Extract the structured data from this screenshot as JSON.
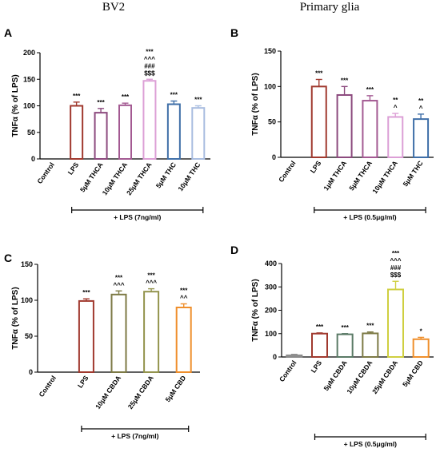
{
  "headers": {
    "left": "BV2",
    "right": "Primary glia"
  },
  "chart_data": [
    {
      "panel": "A",
      "type": "bar",
      "ylabel": "TNFα (% of LPS)",
      "ylim": [
        0,
        200
      ],
      "yticks": [
        0,
        50,
        100,
        150,
        200
      ],
      "categories": [
        "Control",
        "LPS",
        "5μM THCA",
        "10μM THCA",
        "25μM THCA",
        "5μM THC",
        "10μM THC"
      ],
      "values": [
        0,
        100,
        87,
        101,
        147,
        103,
        96
      ],
      "errors": [
        0,
        7,
        8,
        4,
        3,
        6,
        4
      ],
      "colors": [
        "#000000",
        "#a0392e",
        "#8c4a7e",
        "#a35a92",
        "#dc9fd6",
        "#3f6fa8",
        "#a9bde0"
      ],
      "annotations": [
        [],
        [
          "***"
        ],
        [
          "***"
        ],
        [
          "***"
        ],
        [
          "***",
          "^^^",
          "###",
          "$$$"
        ],
        [
          "***"
        ],
        [
          "***"
        ]
      ],
      "bracket": {
        "label": "+ LPS (7ng/ml)",
        "from": 1,
        "to": 6
      }
    },
    {
      "panel": "B",
      "type": "bar",
      "ylabel": "TNFα (% of LPS)",
      "ylim": [
        0,
        150
      ],
      "yticks": [
        0,
        50,
        100,
        150
      ],
      "categories": [
        "Control",
        "LPS",
        "1μM THCA",
        "5μM THCA",
        "10μM THCA",
        "5μM THC"
      ],
      "values": [
        0,
        100,
        88,
        80,
        57,
        54
      ],
      "errors": [
        0,
        10,
        12,
        7,
        5,
        7
      ],
      "colors": [
        "#000000",
        "#a0392e",
        "#8c4a7e",
        "#a35a92",
        "#dc9fd6",
        "#3f6fa8"
      ],
      "annotations": [
        [],
        [
          "***"
        ],
        [
          "***"
        ],
        [
          "***"
        ],
        [
          "**",
          "^"
        ],
        [
          "**",
          "^"
        ]
      ],
      "bracket": {
        "label": "+ LPS (0.5μg/ml)",
        "from": 1,
        "to": 5
      }
    },
    {
      "panel": "C",
      "type": "bar",
      "ylabel": "TNFα (% of LPS)",
      "ylim": [
        0,
        150
      ],
      "yticks": [
        0,
        50,
        100,
        150
      ],
      "categories": [
        "Control",
        "LPS",
        "10μM CBDA",
        "25μM CBDA",
        "5μM CBD"
      ],
      "values": [
        0,
        99,
        108,
        112,
        90
      ],
      "errors": [
        0,
        3,
        5,
        4,
        5
      ],
      "colors": [
        "#000000",
        "#a0392e",
        "#7d7a45",
        "#93944d",
        "#ef8f2c"
      ],
      "annotations": [
        [],
        [
          "***"
        ],
        [
          "***",
          "^^^"
        ],
        [
          "***",
          "^^^"
        ],
        [
          "***",
          "^^"
        ]
      ],
      "bracket": {
        "label": "+ LPS (7ng/ml)",
        "from": 1,
        "to": 4
      }
    },
    {
      "panel": "D",
      "type": "bar",
      "ylabel": "TNFα (% of LPS)",
      "ylim": [
        0,
        400
      ],
      "yticks": [
        0,
        100,
        200,
        300,
        400
      ],
      "categories": [
        "Control",
        "LPS",
        "5μM CBDA",
        "10μM CBDA",
        "25μM CBDA",
        "5μM CBD"
      ],
      "values": [
        7,
        100,
        97,
        101,
        289,
        76
      ],
      "errors": [
        4,
        3,
        3,
        6,
        35,
        8
      ],
      "colors": [
        "#8a8a8a",
        "#a0392e",
        "#5a7a66",
        "#7d7a45",
        "#cfcf40",
        "#ef8f2c"
      ],
      "annotations": [
        [],
        [
          "***"
        ],
        [
          "***"
        ],
        [
          "***"
        ],
        [
          "***",
          "^^^",
          "###",
          "$$$"
        ],
        [
          "*"
        ]
      ],
      "bracket": {
        "label": "+ LPS (0.5μg/ml)",
        "from": 1,
        "to": 5
      }
    }
  ]
}
